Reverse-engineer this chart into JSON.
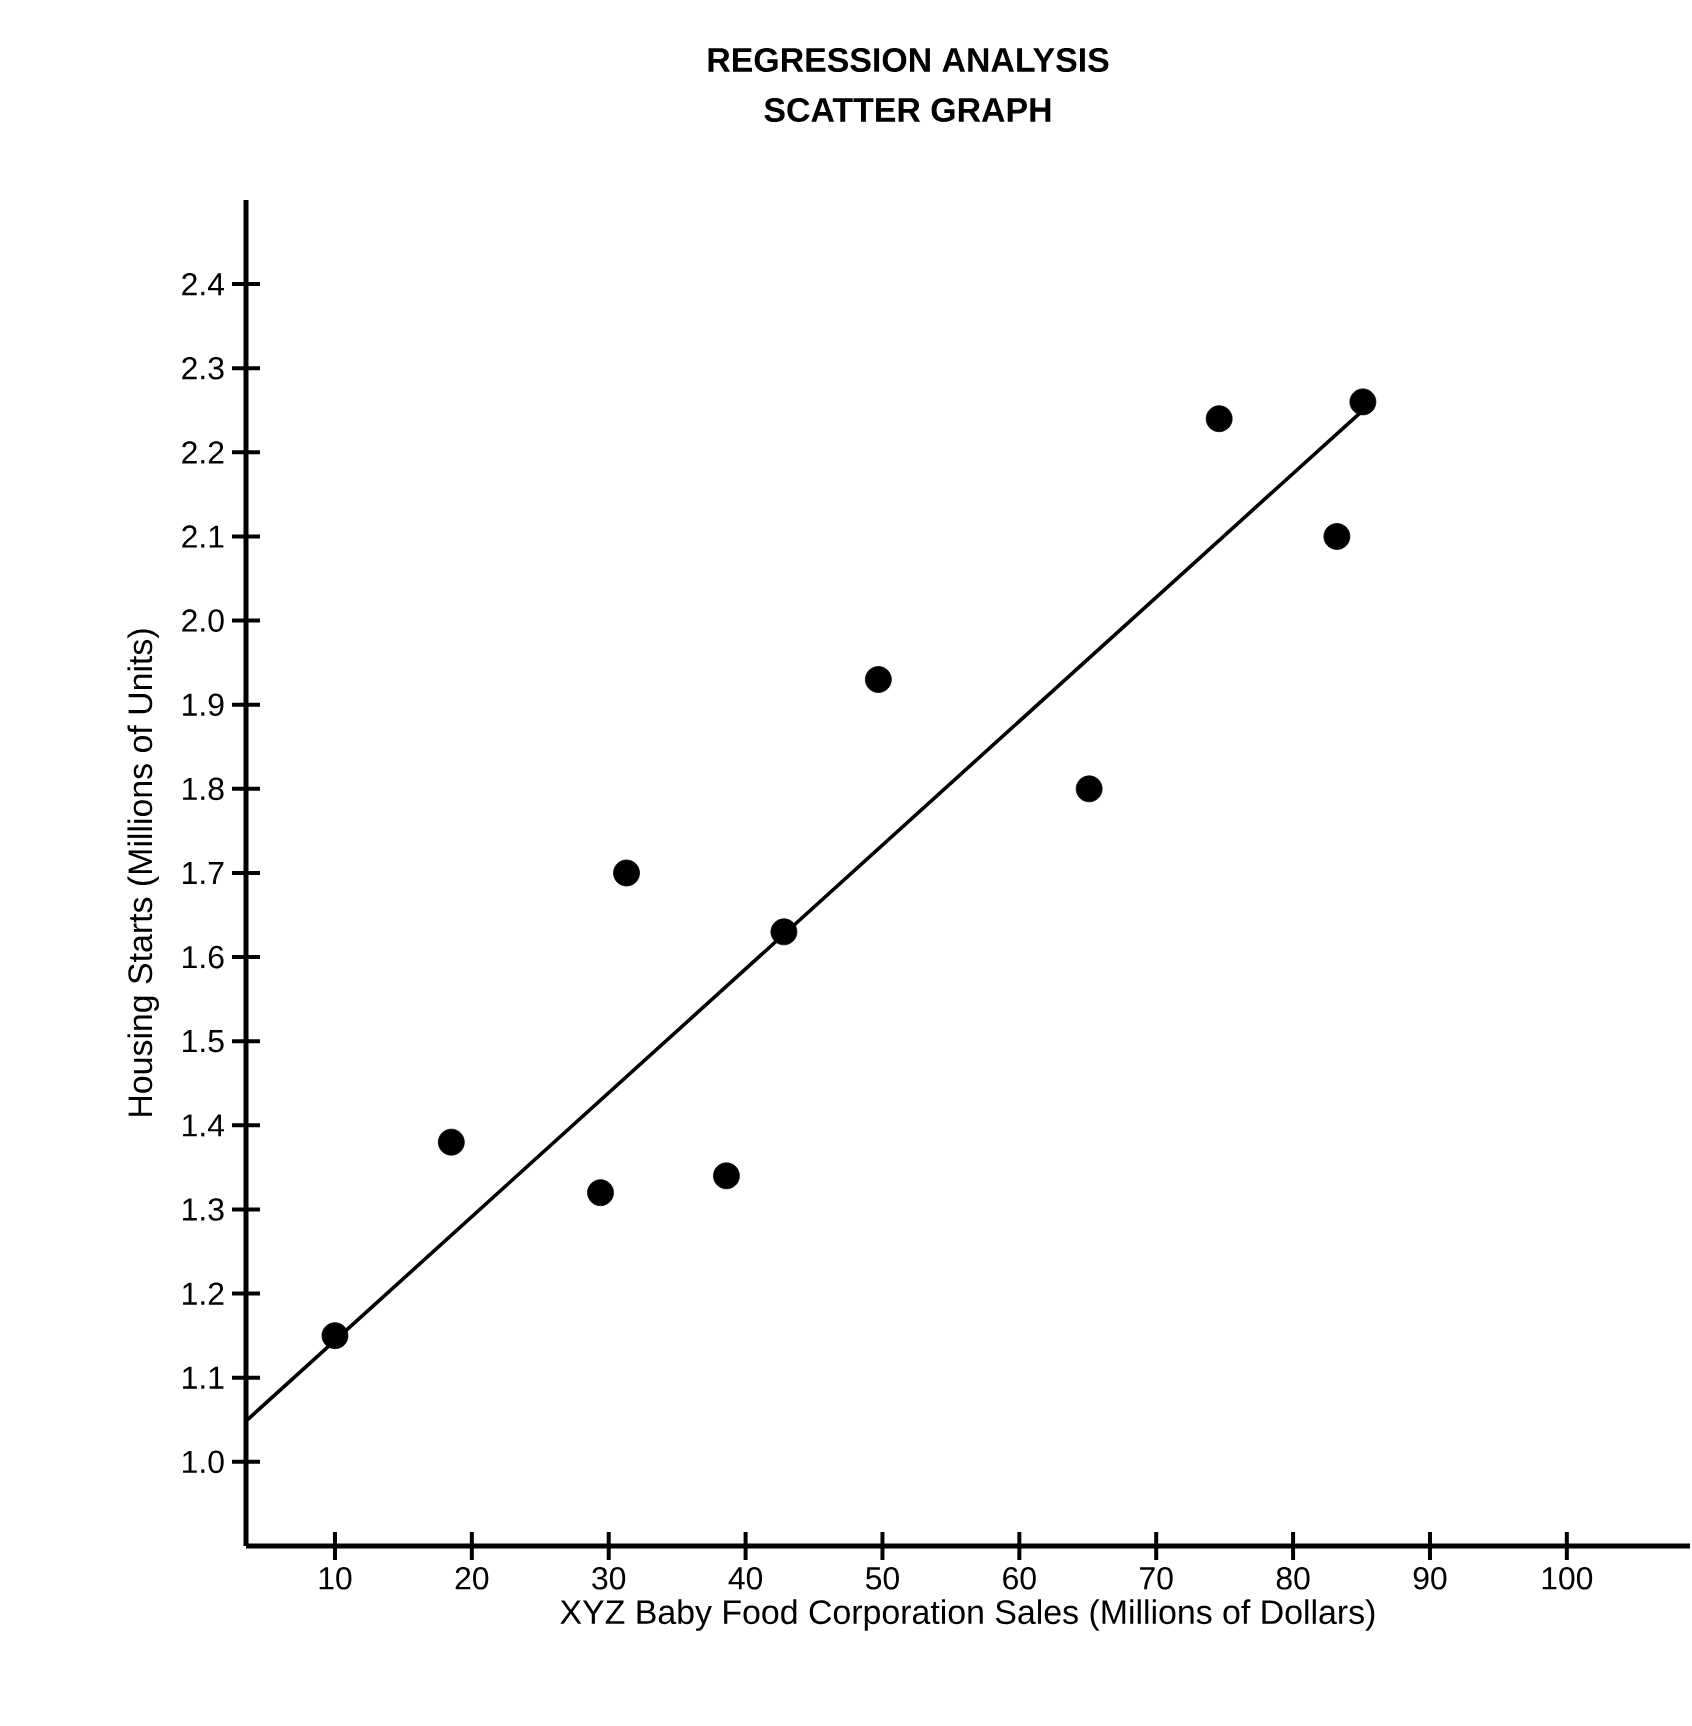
{
  "chart_data": {
    "type": "scatter",
    "title": "REGRESSION ANALYSIS",
    "subtitle": "SCATTER GRAPH",
    "xlabel": "XYZ Baby Food Corporation Sales (Millions of Dollars)",
    "ylabel": "Housing Starts (Millions of Units)",
    "xlim": [
      3.5,
      109
    ],
    "ylim": [
      0.9,
      2.5
    ],
    "xticks": [
      10,
      20,
      30,
      40,
      50,
      60,
      70,
      80,
      90,
      100
    ],
    "yticks": [
      {
        "value": 1.0,
        "label": "1.0"
      },
      {
        "value": 1.1,
        "label": "1.1"
      },
      {
        "value": 1.2,
        "label": "1.2"
      },
      {
        "value": 1.3,
        "label": "1.3"
      },
      {
        "value": 1.4,
        "label": "1.4"
      },
      {
        "value": 1.5,
        "label": "1.5"
      },
      {
        "value": 1.6,
        "label": "1.6"
      },
      {
        "value": 1.7,
        "label": "1.7"
      },
      {
        "value": 1.8,
        "label": "1.8"
      },
      {
        "value": 1.9,
        "label": "1.9"
      },
      {
        "value": 2.0,
        "label": "2.0"
      },
      {
        "value": 2.1,
        "label": "2.1"
      },
      {
        "value": 2.2,
        "label": "2.2"
      },
      {
        "value": 2.3,
        "label": "2.3"
      },
      {
        "value": 2.4,
        "label": "2.4"
      }
    ],
    "grid": false,
    "series": [
      {
        "marker": "circle",
        "color": "#000000",
        "x": [
          10,
          18.5,
          29.4,
          31.3,
          38.6,
          42.8,
          49.7,
          65.1,
          74.6,
          83.2,
          85.1
        ],
        "values": [
          1.15,
          1.38,
          1.32,
          1.7,
          1.34,
          1.63,
          1.93,
          1.8,
          2.24,
          2.1,
          2.26
        ]
      },
      {
        "type": "line",
        "color": "#000000",
        "marker": "none",
        "line_style": "solid",
        "x": [
          3.6,
          85.1
        ],
        "values": [
          1.05,
          2.25
        ]
      }
    ]
  }
}
